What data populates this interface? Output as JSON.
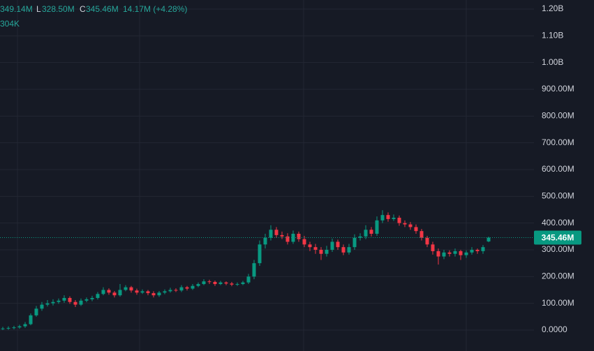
{
  "header": {
    "high": "349.14M",
    "low_label": "L",
    "low": "328.50M",
    "close_label": "C",
    "close": "345.46M",
    "change": "14.17M (+4.28%)",
    "volume": "304K"
  },
  "chart_data": {
    "type": "candlestick",
    "up_color": "#089981",
    "down_color": "#f23645",
    "grid": true,
    "ylim": [
      -78.3,
      1233.9
    ],
    "yticks": [
      {
        "value": 0,
        "label": "0.0000"
      },
      {
        "value": 100,
        "label": "100.00M"
      },
      {
        "value": 200,
        "label": "200.00M"
      },
      {
        "value": 300,
        "label": "300.00M"
      },
      {
        "value": 400,
        "label": "400.00M"
      },
      {
        "value": 500,
        "label": "500.00M"
      },
      {
        "value": 600,
        "label": "600.00M"
      },
      {
        "value": 700,
        "label": "700.00M"
      },
      {
        "value": 800,
        "label": "800.00M"
      },
      {
        "value": 900,
        "label": "900.00M"
      },
      {
        "value": 1000,
        "label": "1.00B"
      },
      {
        "value": 1100,
        "label": "1.10B"
      },
      {
        "value": 1200,
        "label": "1.20B"
      }
    ],
    "last_price": {
      "value": 345.46,
      "label": "345.46M"
    },
    "open": [
      5,
      6,
      8,
      10,
      14,
      22,
      55,
      80,
      95,
      100,
      105,
      110,
      120,
      105,
      95,
      110,
      115,
      120,
      135,
      150,
      140,
      130,
      150,
      160,
      148,
      140,
      145,
      138,
      130,
      140,
      145,
      150,
      148,
      160,
      155,
      165,
      172,
      182,
      180,
      172,
      178,
      174,
      170,
      172,
      178,
      200,
      250,
      320,
      345,
      375,
      355,
      350,
      330,
      360,
      340,
      320,
      310,
      300,
      285,
      300,
      330,
      310,
      290,
      310,
      345,
      350,
      375,
      360,
      410,
      430,
      415,
      420,
      400,
      395,
      385,
      370,
      345,
      320,
      295,
      275,
      290,
      285,
      295,
      280,
      290,
      300,
      295,
      331.29
    ],
    "high": [
      12,
      14,
      16,
      20,
      30,
      62,
      90,
      105,
      112,
      115,
      118,
      130,
      126,
      112,
      118,
      122,
      128,
      142,
      160,
      156,
      146,
      172,
      168,
      165,
      155,
      152,
      150,
      145,
      146,
      152,
      158,
      156,
      168,
      165,
      172,
      178,
      190,
      188,
      185,
      184,
      182,
      180,
      178,
      184,
      210,
      262,
      335,
      360,
      392,
      385,
      368,
      362,
      372,
      368,
      352,
      330,
      322,
      310,
      315,
      342,
      338,
      320,
      322,
      358,
      362,
      392,
      385,
      425,
      448,
      440,
      432,
      428,
      410,
      404,
      395,
      378,
      352,
      330,
      305,
      300,
      298,
      305,
      300,
      298,
      310,
      305,
      318,
      349.14
    ],
    "low": [
      0,
      1,
      3,
      5,
      8,
      18,
      50,
      72,
      88,
      92,
      98,
      102,
      98,
      86,
      90,
      104,
      108,
      114,
      130,
      132,
      122,
      125,
      145,
      140,
      132,
      135,
      130,
      122,
      124,
      134,
      140,
      142,
      142,
      148,
      150,
      160,
      168,
      172,
      165,
      168,
      168,
      164,
      165,
      168,
      172,
      190,
      240,
      305,
      335,
      345,
      340,
      320,
      322,
      330,
      310,
      295,
      285,
      262,
      275,
      292,
      300,
      280,
      282,
      300,
      335,
      340,
      350,
      352,
      400,
      405,
      408,
      390,
      385,
      375,
      360,
      335,
      310,
      282,
      245,
      265,
      275,
      275,
      262,
      270,
      282,
      285,
      285,
      328.5
    ],
    "close": [
      6,
      8,
      10,
      14,
      22,
      55,
      80,
      95,
      100,
      105,
      110,
      120,
      105,
      95,
      110,
      115,
      120,
      135,
      150,
      140,
      130,
      150,
      160,
      148,
      140,
      145,
      138,
      130,
      140,
      145,
      150,
      148,
      160,
      155,
      165,
      172,
      182,
      180,
      172,
      178,
      174,
      170,
      172,
      178,
      200,
      250,
      320,
      345,
      375,
      355,
      350,
      330,
      360,
      340,
      320,
      310,
      300,
      285,
      300,
      330,
      310,
      290,
      310,
      345,
      350,
      375,
      360,
      410,
      430,
      415,
      420,
      400,
      395,
      385,
      370,
      345,
      320,
      295,
      275,
      290,
      285,
      295,
      280,
      290,
      300,
      295,
      310,
      345.46
    ]
  }
}
